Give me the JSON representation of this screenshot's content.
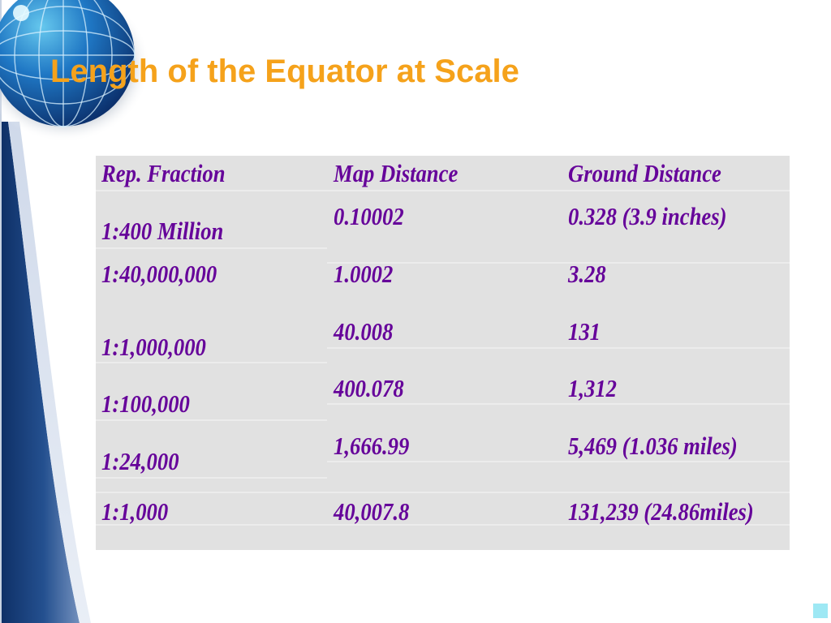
{
  "slide": {
    "title": "Length of the Equator at Scale"
  },
  "table": {
    "headers": [
      "Rep. Fraction",
      "Map Distance",
      "Ground Distance"
    ],
    "rows": [
      [
        "1:400 Million",
        "0.10002",
        "0.328 (3.9 inches)"
      ],
      [
        "1:40,000,000",
        "1.0002",
        "3.28"
      ],
      [
        "1:1,000,000",
        "40.008",
        "131"
      ],
      [
        "1:100,000",
        "400.078",
        "1,312"
      ],
      [
        "1:24,000",
        "1,666.99",
        "5,469 (1.036 miles)"
      ],
      [
        "1:1,000",
        "40,007.8",
        "131,239 (24.86miles)"
      ]
    ]
  },
  "colors": {
    "title": "#f5a21b",
    "table_text": "#66049a",
    "table_background": "#e1e1e1",
    "band_dark": "#1a3f7a",
    "corner_box": "#9ee8f4"
  },
  "icons": {
    "globe": "globe-icon"
  }
}
